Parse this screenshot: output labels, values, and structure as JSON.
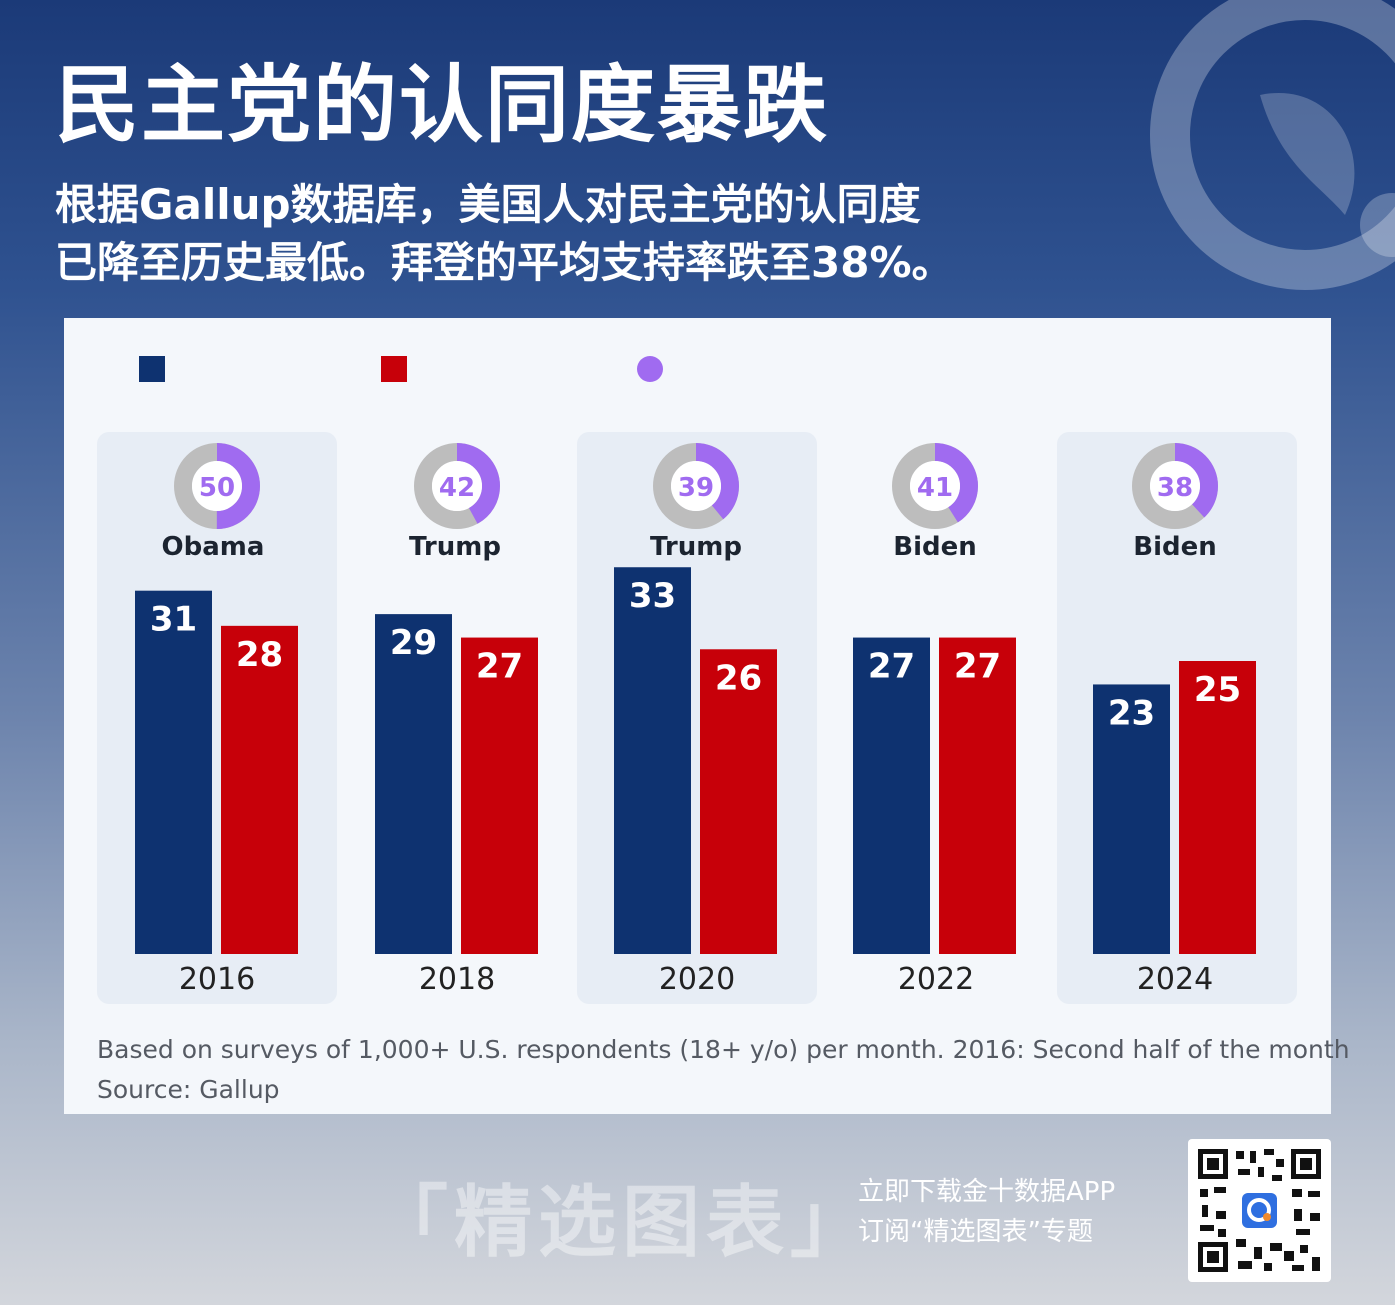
{
  "header": {
    "title": "民主党的认同度暴跌",
    "subtitle_line1": "根据Gallup数据库，美国人对民主党的认同度",
    "subtitle_line2": "已降至历史最低。拜登的平均支持率跌至38%。"
  },
  "colors": {
    "democrats": "#0e3270",
    "republicans": "#c70009",
    "approval": "#a06bf0",
    "approval_rest": "#bdbdbd"
  },
  "legend": [
    {
      "label": "",
      "color": "#0e3270",
      "shape": "square"
    },
    {
      "label": "",
      "color": "#c70009",
      "shape": "square"
    },
    {
      "label": "",
      "color": "#a06bf0",
      "shape": "circle"
    }
  ],
  "chart_data": {
    "type": "bar",
    "categories": [
      "2016",
      "2018",
      "2020",
      "2022",
      "2024"
    ],
    "series": [
      {
        "values": [
          31,
          29,
          33,
          27,
          23
        ]
      },
      {
        "values": [
          28,
          27,
          26,
          27,
          25
        ]
      }
    ],
    "presidents": [
      "Obama",
      "Trump",
      "Trump",
      "Biden",
      "Biden"
    ],
    "approval": [
      50,
      42,
      39,
      41,
      38
    ],
    "ylim": [
      0,
      33
    ],
    "grid": false
  },
  "footnote": {
    "note": "Based on surveys of 1,000+ U.S. respondents (18+ y/o) per month. 2016: Second half of the month",
    "source": "Source: Gallup"
  },
  "footer": {
    "watermark": "「精选图表」",
    "promo_line1": "立即下载金十数据APP",
    "promo_line2": "订阅“精选图表”专题"
  },
  "icons": {
    "logo": "jin10-logo-icon",
    "qr": "qr-code-icon"
  }
}
